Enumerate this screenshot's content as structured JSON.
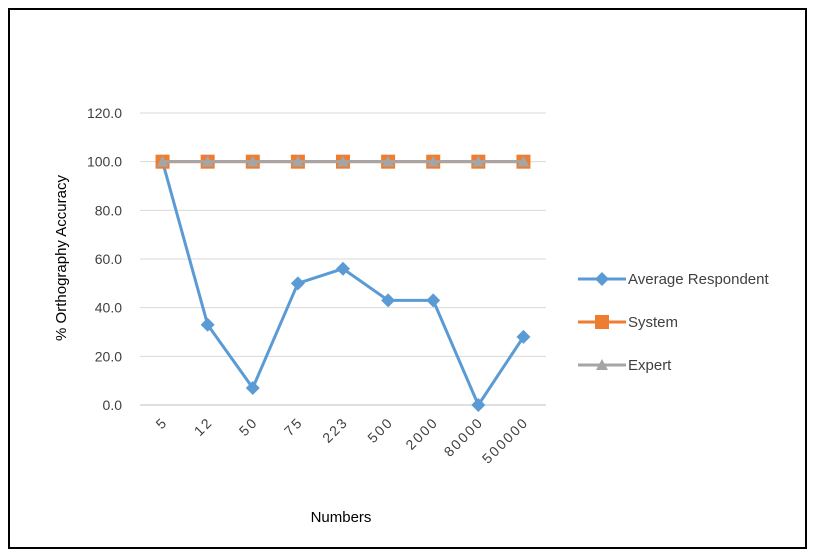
{
  "chart_data": {
    "type": "line",
    "xlabel": "Numbers",
    "ylabel": "% Orthography Accuracy",
    "categories": [
      "5",
      "12",
      "50",
      "75",
      "223",
      "500",
      "2000",
      "80000",
      "500000"
    ],
    "ylim": [
      0,
      120
    ],
    "yticks": [
      "0.0",
      "20.0",
      "40.0",
      "60.0",
      "80.0",
      "100.0",
      "120.0"
    ],
    "grid": true,
    "legend_position": "right",
    "series": [
      {
        "name": "Average Respondent",
        "color": "#5B9BD5",
        "marker": "diamond",
        "values": [
          100,
          33,
          7,
          50,
          56,
          43,
          43,
          0,
          28
        ]
      },
      {
        "name": "System",
        "color": "#ED7D31",
        "marker": "square",
        "values": [
          100,
          100,
          100,
          100,
          100,
          100,
          100,
          100,
          100
        ]
      },
      {
        "name": "Expert",
        "color": "#A5A5A5",
        "marker": "triangle",
        "values": [
          100,
          100,
          100,
          100,
          100,
          100,
          100,
          100,
          100
        ]
      }
    ]
  }
}
